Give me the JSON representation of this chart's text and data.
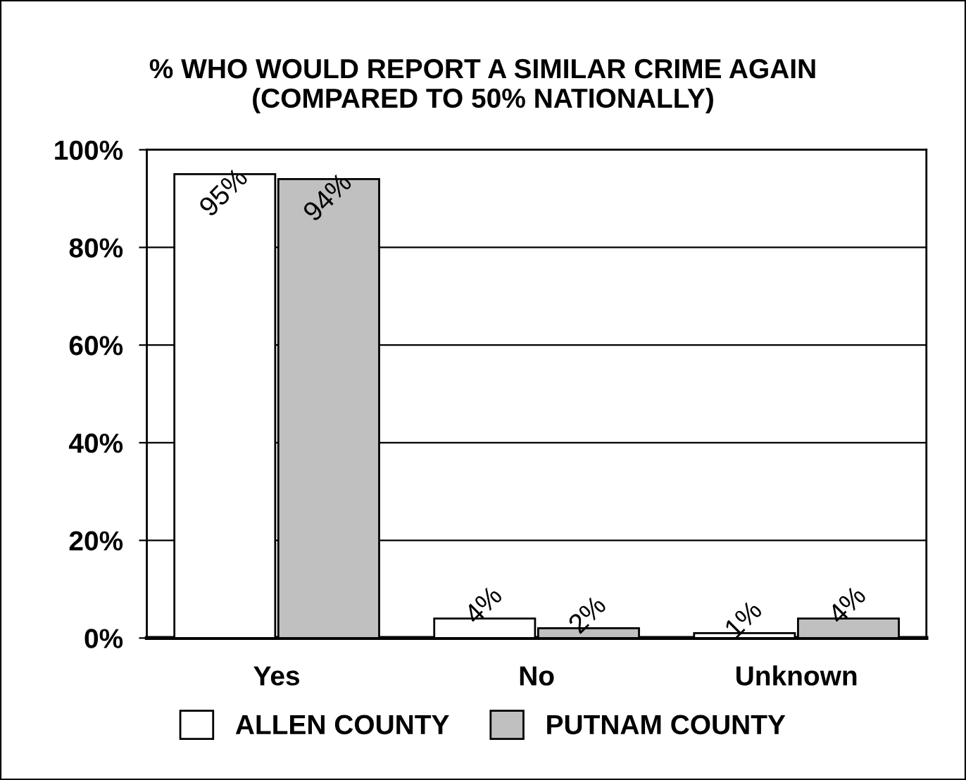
{
  "chart_data": {
    "type": "bar",
    "title": "% WHO WOULD REPORT A SIMILAR CRIME AGAIN\n(COMPARED TO 50% NATIONALLY)",
    "categories": [
      "Yes",
      "No",
      "Unknown"
    ],
    "series": [
      {
        "name": "ALLEN COUNTY",
        "color": "#ffffff",
        "values": [
          95,
          4,
          1
        ],
        "value_labels": [
          "95%",
          "4%",
          "1%"
        ]
      },
      {
        "name": "PUTNAM COUNTY",
        "color": "#c0c0c0",
        "values": [
          94,
          2,
          4
        ],
        "value_labels": [
          "94%",
          "2%",
          "4%"
        ]
      }
    ],
    "ylim": [
      0,
      100
    ],
    "yticks": [
      {
        "value": 0,
        "label": "0%"
      },
      {
        "value": 20,
        "label": "20%"
      },
      {
        "value": 40,
        "label": "40%"
      },
      {
        "value": 60,
        "label": "60%"
      },
      {
        "value": 80,
        "label": "80%"
      },
      {
        "value": 100,
        "label": "100%"
      }
    ],
    "grid": "y",
    "legend": "bottom"
  }
}
